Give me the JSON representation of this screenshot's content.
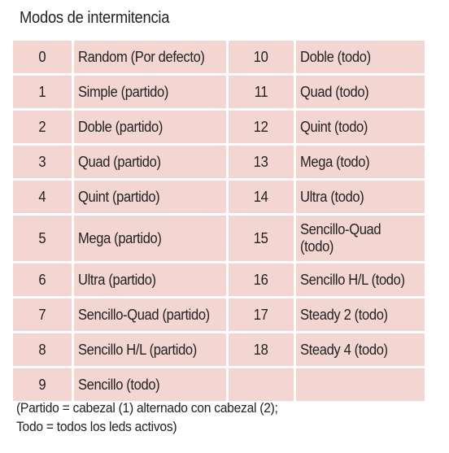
{
  "title": "Modos de intermitencia",
  "rows": [
    {
      "n1": "0",
      "l1": "Random (Por defecto)",
      "n2": "10",
      "l2": "Doble (todo)"
    },
    {
      "n1": "1",
      "l1": "Simple (partido)",
      "n2": "11",
      "l2": "Quad (todo)"
    },
    {
      "n1": "2",
      "l1": "Doble (partido)",
      "n2": "12",
      "l2": "Quint (todo)"
    },
    {
      "n1": "3",
      "l1": "Quad (partido)",
      "n2": "13",
      "l2": "Mega (todo)"
    },
    {
      "n1": "4",
      "l1": "Quint (partido)",
      "n2": "14",
      "l2": "Ultra (todo)"
    },
    {
      "n1": "5",
      "l1": "Mega (partido)",
      "n2": "15",
      "l2": "Sencillo-Quad (todo)"
    },
    {
      "n1": "6",
      "l1": "Ultra (partido)",
      "n2": "16",
      "l2": "Sencillo H/L (todo)"
    },
    {
      "n1": "7",
      "l1": "Sencillo-Quad (partido)",
      "n2": "17",
      "l2": "Steady 2 (todo)"
    },
    {
      "n1": "8",
      "l1": "Sencillo H/L (partido)",
      "n2": "18",
      "l2": "Steady 4 (todo)"
    },
    {
      "n1": "9",
      "l1": "Sencillo (todo)",
      "n2": "",
      "l2": ""
    }
  ],
  "note": {
    "line1": "(Partido = cabezal (1) alternado con cabezal (2);",
    "line2": "Todo = todos los leds activos)"
  },
  "colors": {
    "cell_background": "#f3d6d1",
    "text": "#222222"
  }
}
